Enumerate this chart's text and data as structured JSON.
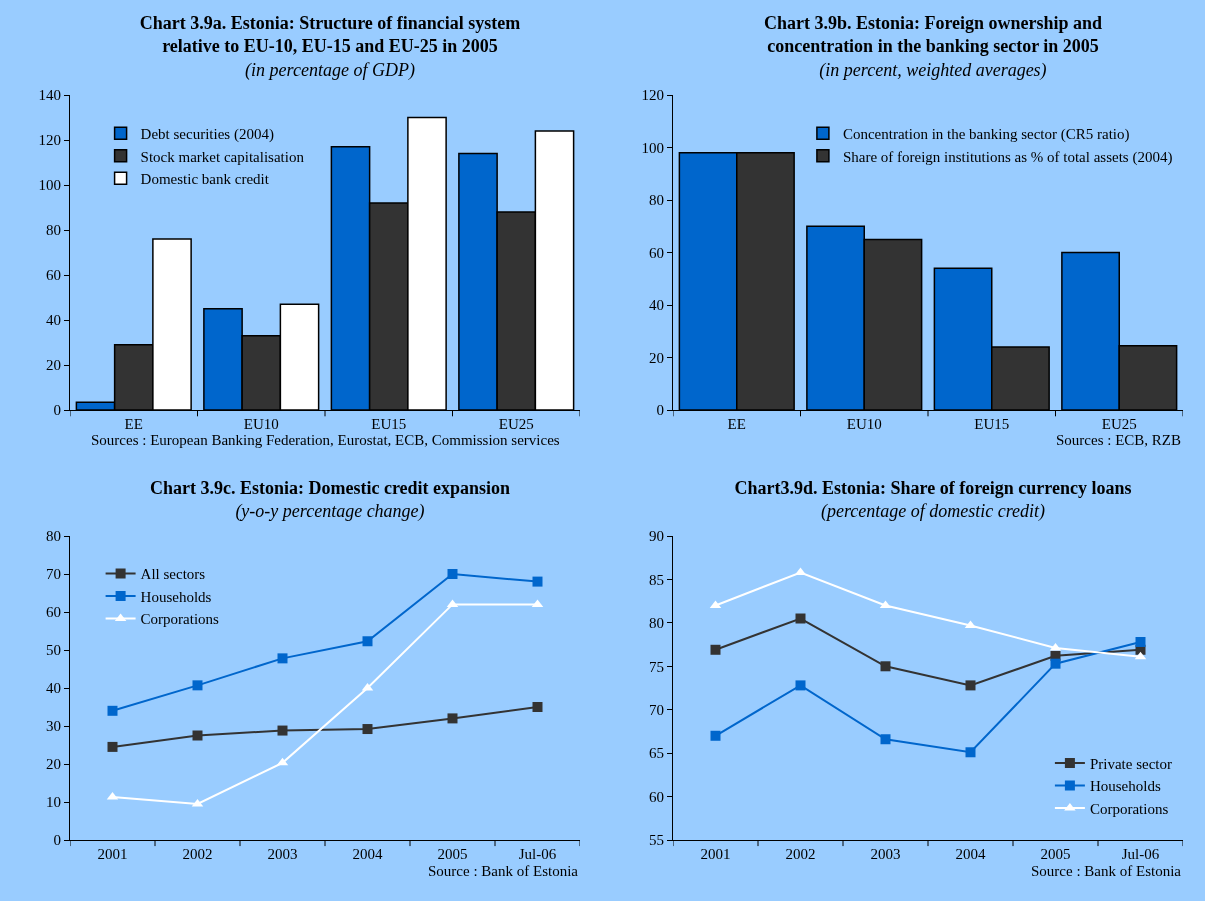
{
  "chart_data": [
    {
      "type": "bar",
      "title": "Chart 3.9a. Estonia: Structure of financial system relative to EU-10, EU-15 and EU-25 in 2005",
      "subtitle": "(in percentage of GDP)",
      "categories": [
        "EE",
        "EU10",
        "EU15",
        "EU25"
      ],
      "series": [
        {
          "name": "Debt securities (2004)",
          "color": "#0066cc",
          "values": [
            3.5,
            45,
            117,
            114
          ]
        },
        {
          "name": "Stock market capitalisation",
          "color": "#333333",
          "values": [
            29,
            33,
            92,
            88
          ]
        },
        {
          "name": "Domestic bank credit",
          "color": "#ffffff",
          "values": [
            76,
            47,
            130,
            124
          ]
        }
      ],
      "ylim": [
        0,
        140
      ],
      "yticks": [
        0,
        20,
        40,
        60,
        80,
        100,
        120,
        140
      ],
      "grid": false,
      "legend": "top left",
      "annotations": [
        "Sources : European Banking Federation, Eurostat, ECB, Commission services"
      ]
    },
    {
      "type": "bar",
      "title": "Chart 3.9b. Estonia: Foreign ownership and concentration in the banking sector in 2005",
      "subtitle": "(in percent, weighted averages)",
      "categories": [
        "EE",
        "EU10",
        "EU15",
        "EU25"
      ],
      "series": [
        {
          "name": "Concentration in the banking sector (CR5 ratio)",
          "color": "#0066cc",
          "values": [
            98,
            70,
            54,
            60
          ]
        },
        {
          "name": "Share of foreign institutions as % of total assets (2004)",
          "color": "#333333",
          "values": [
            98,
            65,
            24,
            24.5
          ]
        }
      ],
      "ylim": [
        0,
        120
      ],
      "yticks": [
        0,
        20,
        40,
        60,
        80,
        100,
        120
      ],
      "grid": false,
      "legend": "top right",
      "annotations": [
        "Sources : ECB, RZB"
      ]
    },
    {
      "type": "line",
      "title": "Chart 3.9c. Estonia: Domestic credit expansion",
      "subtitle": "(y-o-y percentage change)",
      "categories": [
        "2001",
        "2002",
        "2003",
        "2004",
        "2005",
        "Jul-06"
      ],
      "series": [
        {
          "name": "All sectors",
          "color": "#333333",
          "marker": "square",
          "values": [
            24.5,
            27.5,
            28.8,
            29.2,
            32,
            35
          ]
        },
        {
          "name": "Households",
          "color": "#0066cc",
          "marker": "square",
          "values": [
            34,
            40.7,
            47.8,
            52.3,
            70,
            68
          ]
        },
        {
          "name": "Corporations",
          "color": "#ffffff",
          "marker": "triangle",
          "values": [
            11.3,
            9.5,
            20.3,
            40,
            62,
            62
          ]
        }
      ],
      "ylim": [
        0,
        80
      ],
      "yticks": [
        0,
        10,
        20,
        30,
        40,
        50,
        60,
        70,
        80
      ],
      "grid": false,
      "legend": "top left",
      "line_style": "solid",
      "annotations": [
        "Source : Bank of Estonia"
      ]
    },
    {
      "type": "line",
      "title": "Chart3.9d. Estonia: Share of foreign currency loans",
      "subtitle": "(percentage of domestic credit)",
      "categories": [
        "2001",
        "2002",
        "2003",
        "2004",
        "2005",
        "Jul-06"
      ],
      "series": [
        {
          "name": "Private sector",
          "color": "#333333",
          "marker": "square",
          "values": [
            76.9,
            80.5,
            75,
            72.8,
            76.2,
            76.9
          ]
        },
        {
          "name": "Households",
          "color": "#0066cc",
          "marker": "square",
          "values": [
            67,
            72.8,
            66.6,
            65.1,
            75.3,
            77.8
          ]
        },
        {
          "name": "Corporations",
          "color": "#ffffff",
          "marker": "triangle",
          "values": [
            82,
            85.8,
            82,
            79.7,
            77.1,
            76.1
          ]
        }
      ],
      "ylim": [
        55,
        90
      ],
      "yticks": [
        55,
        60,
        65,
        70,
        75,
        80,
        85,
        90
      ],
      "grid": false,
      "legend": "bottom right",
      "line_style": "solid",
      "annotations": [
        "Source : Bank of Estonia"
      ]
    }
  ]
}
